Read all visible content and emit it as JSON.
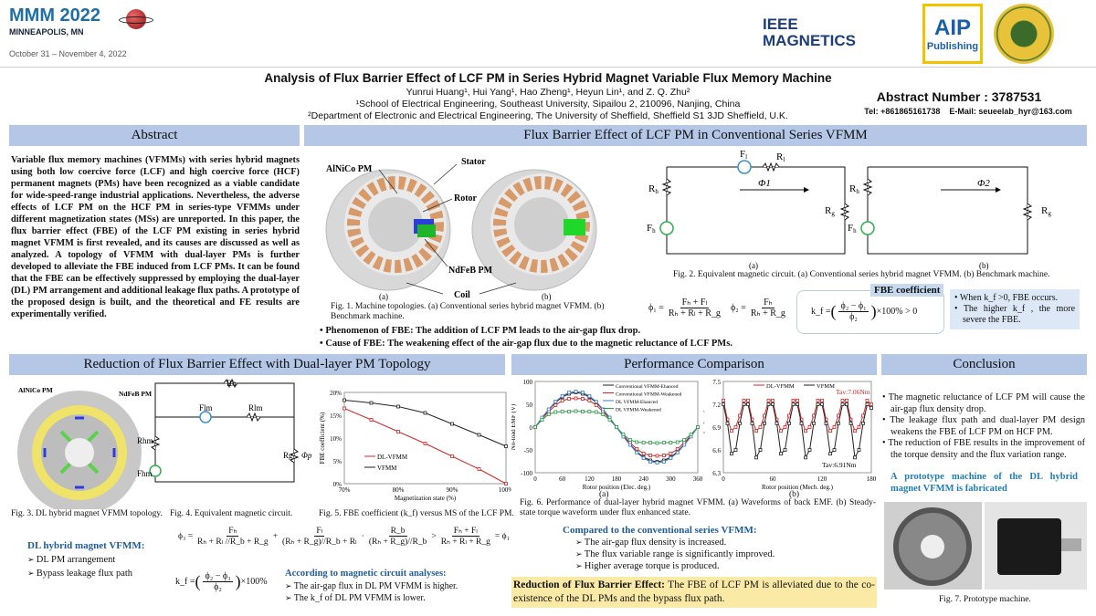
{
  "header": {
    "conf_name": "MMM 2022",
    "conf_location": "MINNEAPOLIS, MN",
    "conf_dates": "October 31 – November 4, 2022",
    "logos": {
      "ieee": "IEEE MAGNETICS",
      "aip_line1": "AIP",
      "aip_line2": "Publishing",
      "seu": "Southeast University"
    },
    "title": "Analysis of Flux Barrier Effect of LCF PM in Series Hybrid Magnet Variable Flux Memory Machine",
    "authors": "Yunrui Huang¹, Hui Yang¹, Hao Zheng¹, Heyun Lin¹, and Z. Q. Zhu²",
    "affil1": "¹School of Electrical Engineering, Southeast University, Sipailou 2, 210096, Nanjing, China",
    "affil2": "²Department of Electronic and Electrical Engineering, The University of Sheffield, Sheffield S1 3JD Sheffield, U.K.",
    "abstract_number": "Abstract Number : 3787531",
    "contact": "Tel: +861865161738    E-Mail: seueelab_hyr@163.com"
  },
  "abstract": {
    "heading": "Abstract",
    "text": "Variable flux memory machines (VFMMs) with series hybrid magnets using both low coercive force (LCF) and high coercive force (HCF) permanent magnets (PMs) have been recognized as a viable candidate for wide-speed-range industrial applications. Nevertheless, the adverse effects of LCF PM on the HCF PM in series-type VFMMs under different magnetization states (MSs) are unreported. In this paper, the flux barrier effect (FBE) of the LCF PM existing in series hybrid magnet VFMM is first revealed, and its causes are discussed as well as analyzed. A topology of VFMM with dual-layer PMs is further developed to alleviate the FBE induced from LCF PMs. It can be found that the FBE can be effectively suppressed by employing the dual-layer (DL) PM arrangement and additional leakage flux paths. A prototype of the proposed design is built, and the theoretical and FE results are experimentally verified."
  },
  "conventional": {
    "heading": "Flux Barrier Effect of LCF PM in Conventional Series VFMM",
    "fig1_labels": {
      "alnico": "AlNiCo PM",
      "stator": "Stator",
      "rotor": "Rotor",
      "ndfeb": "NdFeB PM",
      "coil": "Coil",
      "a": "(a)",
      "b": "(b)"
    },
    "fig1_caption": "Fig. 1. Machine topologies. (a) Conventional series hybrid magnet VFMM. (b) Benchmark machine.",
    "fig2_labels": {
      "R": "R",
      "F": "F",
      "h": "h",
      "l": "l",
      "g": "g",
      "phi1": "Φ1",
      "phi2": "Φ2",
      "a": "(a)",
      "b": "(b)"
    },
    "fig2_caption": "Fig. 2. Equivalent magnetic circuit. (a) Conventional series hybrid magnet VFMM. (b) Benchmark machine.",
    "eq_phi1": {
      "lhs": "ϕ₁ =",
      "num": "Fₕ + Fₗ",
      "den": "Rₕ + Rₗ + R_g"
    },
    "eq_phi2": {
      "lhs": "ϕ₂ =",
      "num": "Fₕ",
      "den": "Rₕ + R_g"
    },
    "fbe_label": "FBE coefficient",
    "eq_kf": {
      "lhs": "k_f =",
      "num": "ϕ₂ − ϕ₁",
      "den": "ϕ₂",
      "rhs": "×100% > 0"
    },
    "notes": [
      "When k_f >0, FBE occurs.",
      "The higher k_f , the more severe the FBE."
    ],
    "bullets": [
      "Phenomenon of FBE: The addition of LCF PM leads to the air-gap flux drop.",
      "Cause of FBE: The weakening effect of the air-gap flux due to the magnetic reluctance of LCF PMs."
    ]
  },
  "reduction": {
    "heading": "Reduction of Flux Barrier Effect with Dual-layer PM Topology",
    "fig3_labels": {
      "alnico": "AlNiCo PM",
      "ndfeb": "NdFeB PM"
    },
    "fig4_labels": {
      "rb": "Rb",
      "flm": "Flm",
      "rlm": "Rlm",
      "rhm": "Rhm",
      "fhm": "Fhm",
      "rg": "Rg",
      "phip": "Φp"
    },
    "fig3_caption": "Fig. 3. DL hybrid magnet VFMM topology.",
    "fig4_caption": "Fig. 4. Equivalent magnetic circuit.",
    "fig5_caption": "Fig. 5. FBE coefficient (k_f) versus MS of the LCF PM.",
    "dl_title": "DL hybrid magnet VFMM:",
    "dl_items": [
      "DL PM arrangement",
      "Bypass leakage flux path"
    ],
    "eq_phi3": {
      "lhs": "ϕ₃ =",
      "t1_num": "Fₕ",
      "t1_den": "Rₕ + Rₗ //R_b + R_g",
      "t2_num": "Fₗ",
      "t2_den": "(Rₕ + R_g)//R_b + Rₗ",
      "t3_num": "R_b",
      "t3_den": "(Rₕ + R_g)//R_b",
      "cmp_num": "Fₕ + Fₗ",
      "cmp_den": "Rₕ + Rₗ + R_g",
      "rhs": "= ϕ₁"
    },
    "eq_kf": {
      "lhs": "k_f =",
      "num": "ϕ₂ − ϕ₃",
      "den": "ϕ₂",
      "rhs": "×100%"
    },
    "analysis_title": "According to magnetic circuit analyses:",
    "analysis_items": [
      "The air-gap flux in DL PM VFMM is higher.",
      "The k_f of DL PM VFMM is lower."
    ]
  },
  "performance": {
    "heading": "Performance Comparison",
    "fig6_caption": "Fig. 6. Performance of dual-layer hybrid magnet VFMM. (a) Waveforms of back EMF. (b) Steady-state torque waveform under flux enhanced state.",
    "sub_a": "(a)",
    "sub_b": "(b)",
    "compare_title": "Compared to the conventional series VFMM:",
    "compare_items": [
      "The air-gap flux density is increased.",
      "The flux variable range is significantly improved.",
      "Higher average torque is produced."
    ],
    "highlight_bold": "Reduction of Flux Barrier Effect:",
    "highlight_text": " The FBE of LCF PM is alleviated due to the co-existence of the DL PMs and the bypass flux path."
  },
  "conclusion": {
    "heading": "Conclusion",
    "items": [
      "The magnetic reluctance of LCF PM will cause the air-gap flux density drop.",
      "The leakage flux path and dual-layer PM design weakens the FBE of LCF PM on HCF PM.",
      "The reduction of FBE results in the improvement of the torque density and the flux variation range."
    ],
    "prototype_text": "A prototype machine of the DL hybrid magnet VFMM is fabricated",
    "fig7_caption": "Fig. 7. Prototype machine."
  },
  "colors": {
    "section_header": "#b4c7e7",
    "accent_blue": "#1f5c99",
    "highlight": "#fbe9a6",
    "note_box": "#dce8f5",
    "red": "#d02828"
  },
  "chart_data": [
    {
      "id": "fig5",
      "type": "line",
      "xlabel": "Magnetization state (%)",
      "ylabel": "FBE coefficient (%)",
      "x": [
        70,
        75,
        80,
        85,
        90,
        95,
        100
      ],
      "xticks": [
        "70%",
        "80%",
        "90%",
        "100%"
      ],
      "xtick_values": [
        70,
        80,
        90,
        100
      ],
      "yticks": [
        "0%",
        "5%",
        "10%",
        "15%",
        "20%"
      ],
      "ytick_values": [
        0,
        5,
        10,
        15,
        20
      ],
      "xlim": [
        70,
        100
      ],
      "ylim": [
        0,
        20
      ],
      "legend": "center-left",
      "series": [
        {
          "name": "DL-VFMM",
          "color": "#d02828",
          "values": [
            16.5,
            14.0,
            11.4,
            8.8,
            6.0,
            3.2,
            0.0
          ]
        },
        {
          "name": "VFMM",
          "color": "#222222",
          "values": [
            18.3,
            17.7,
            16.9,
            15.5,
            13.1,
            10.7,
            8.2
          ]
        }
      ]
    },
    {
      "id": "fig6a",
      "type": "line",
      "xlabel": "Rotor position (Elec. deg.)",
      "ylabel": "No-load EMF (V)",
      "x": [
        0,
        15,
        30,
        45,
        60,
        75,
        90,
        105,
        120,
        135,
        150,
        165,
        180,
        195,
        210,
        225,
        240,
        255,
        270,
        285,
        300,
        315,
        330,
        345,
        360
      ],
      "xticks": [
        "0",
        "60",
        "120",
        "180",
        "240",
        "300",
        "360"
      ],
      "xtick_values": [
        0,
        60,
        120,
        180,
        240,
        300,
        360
      ],
      "yticks": [
        "-100",
        "-50",
        "0",
        "50",
        "100"
      ],
      "ytick_values": [
        -100,
        -50,
        0,
        50,
        100
      ],
      "xlim": [
        0,
        360
      ],
      "ylim": [
        -100,
        100
      ],
      "legend": "top-right",
      "series": [
        {
          "name": "Conventional VFMM-Ehanced",
          "color": "#222222",
          "values": [
            0,
            20,
            38,
            54,
            66,
            73,
            76,
            73,
            66,
            54,
            38,
            20,
            0,
            -20,
            -38,
            -54,
            -66,
            -73,
            -76,
            -73,
            -66,
            -54,
            -38,
            -20,
            0
          ]
        },
        {
          "name": "Conventional VFMM-Weakened",
          "color": "#d02828",
          "values": [
            0,
            18,
            34,
            48,
            58,
            62,
            63,
            62,
            58,
            48,
            34,
            18,
            0,
            -18,
            -34,
            -48,
            -58,
            -62,
            -63,
            -62,
            -58,
            -48,
            -34,
            -18,
            0
          ]
        },
        {
          "name": "DL VFMM-Ehanced",
          "color": "#3f7fc8",
          "values": [
            0,
            21,
            39,
            56,
            68,
            76,
            78,
            76,
            68,
            56,
            39,
            21,
            0,
            -21,
            -39,
            -56,
            -68,
            -76,
            -78,
            -76,
            -68,
            -56,
            -39,
            -21,
            0
          ]
        },
        {
          "name": "DL VFMM-Weakened",
          "color": "#2e9a4a",
          "values": [
            0,
            16,
            28,
            33,
            34,
            34,
            35,
            34,
            34,
            33,
            28,
            16,
            0,
            -16,
            -28,
            -33,
            -34,
            -34,
            -35,
            -34,
            -34,
            -33,
            -28,
            -16,
            0
          ]
        }
      ]
    },
    {
      "id": "fig6b",
      "type": "line",
      "xlabel": "Rotor position (Mech. deg.)",
      "ylabel": "Torque (Nm)",
      "x": [
        0,
        5,
        10,
        15,
        20,
        25,
        30,
        35,
        40,
        45,
        50,
        55,
        60,
        65,
        70,
        75,
        80,
        85,
        90,
        95,
        100,
        105,
        110,
        115,
        120,
        125,
        130,
        135,
        140,
        145,
        150,
        155,
        160,
        165,
        170,
        175,
        180
      ],
      "xticks": [
        "0",
        "60",
        "120",
        "180"
      ],
      "xtick_values": [
        0,
        60,
        120,
        180
      ],
      "yticks": [
        "6.3",
        "6.6",
        "6.9",
        "7.2",
        "7.5"
      ],
      "ytick_values": [
        6.3,
        6.6,
        6.9,
        7.2,
        7.5
      ],
      "xlim": [
        0,
        180
      ],
      "ylim": [
        6.3,
        7.5
      ],
      "legend": "top",
      "annotations": [
        "Tav:7.06Nm",
        "Tav:6.91Nm"
      ],
      "series": [
        {
          "name": "DL-VFMM",
          "color": "#d02828",
          "values": [
            7.25,
            7.0,
            6.85,
            6.9,
            7.05,
            7.25,
            7.25,
            7.0,
            6.85,
            6.9,
            7.05,
            7.25,
            7.25,
            7.0,
            6.85,
            6.9,
            7.05,
            7.25,
            7.25,
            7.0,
            6.85,
            6.9,
            7.05,
            7.25,
            7.25,
            7.0,
            6.85,
            6.9,
            7.05,
            7.25,
            7.25,
            7.0,
            6.85,
            6.9,
            7.05,
            7.25,
            7.2
          ]
        },
        {
          "name": "VFMM",
          "color": "#222222",
          "values": [
            7.2,
            6.95,
            6.55,
            6.6,
            6.95,
            7.2,
            7.2,
            6.95,
            6.5,
            6.6,
            6.95,
            7.2,
            7.2,
            6.95,
            6.55,
            6.6,
            6.95,
            7.2,
            7.2,
            6.95,
            6.5,
            6.6,
            6.95,
            7.2,
            7.2,
            6.95,
            6.55,
            6.6,
            6.95,
            7.2,
            7.2,
            6.95,
            6.5,
            6.6,
            6.95,
            7.2,
            7.15
          ]
        }
      ]
    }
  ]
}
